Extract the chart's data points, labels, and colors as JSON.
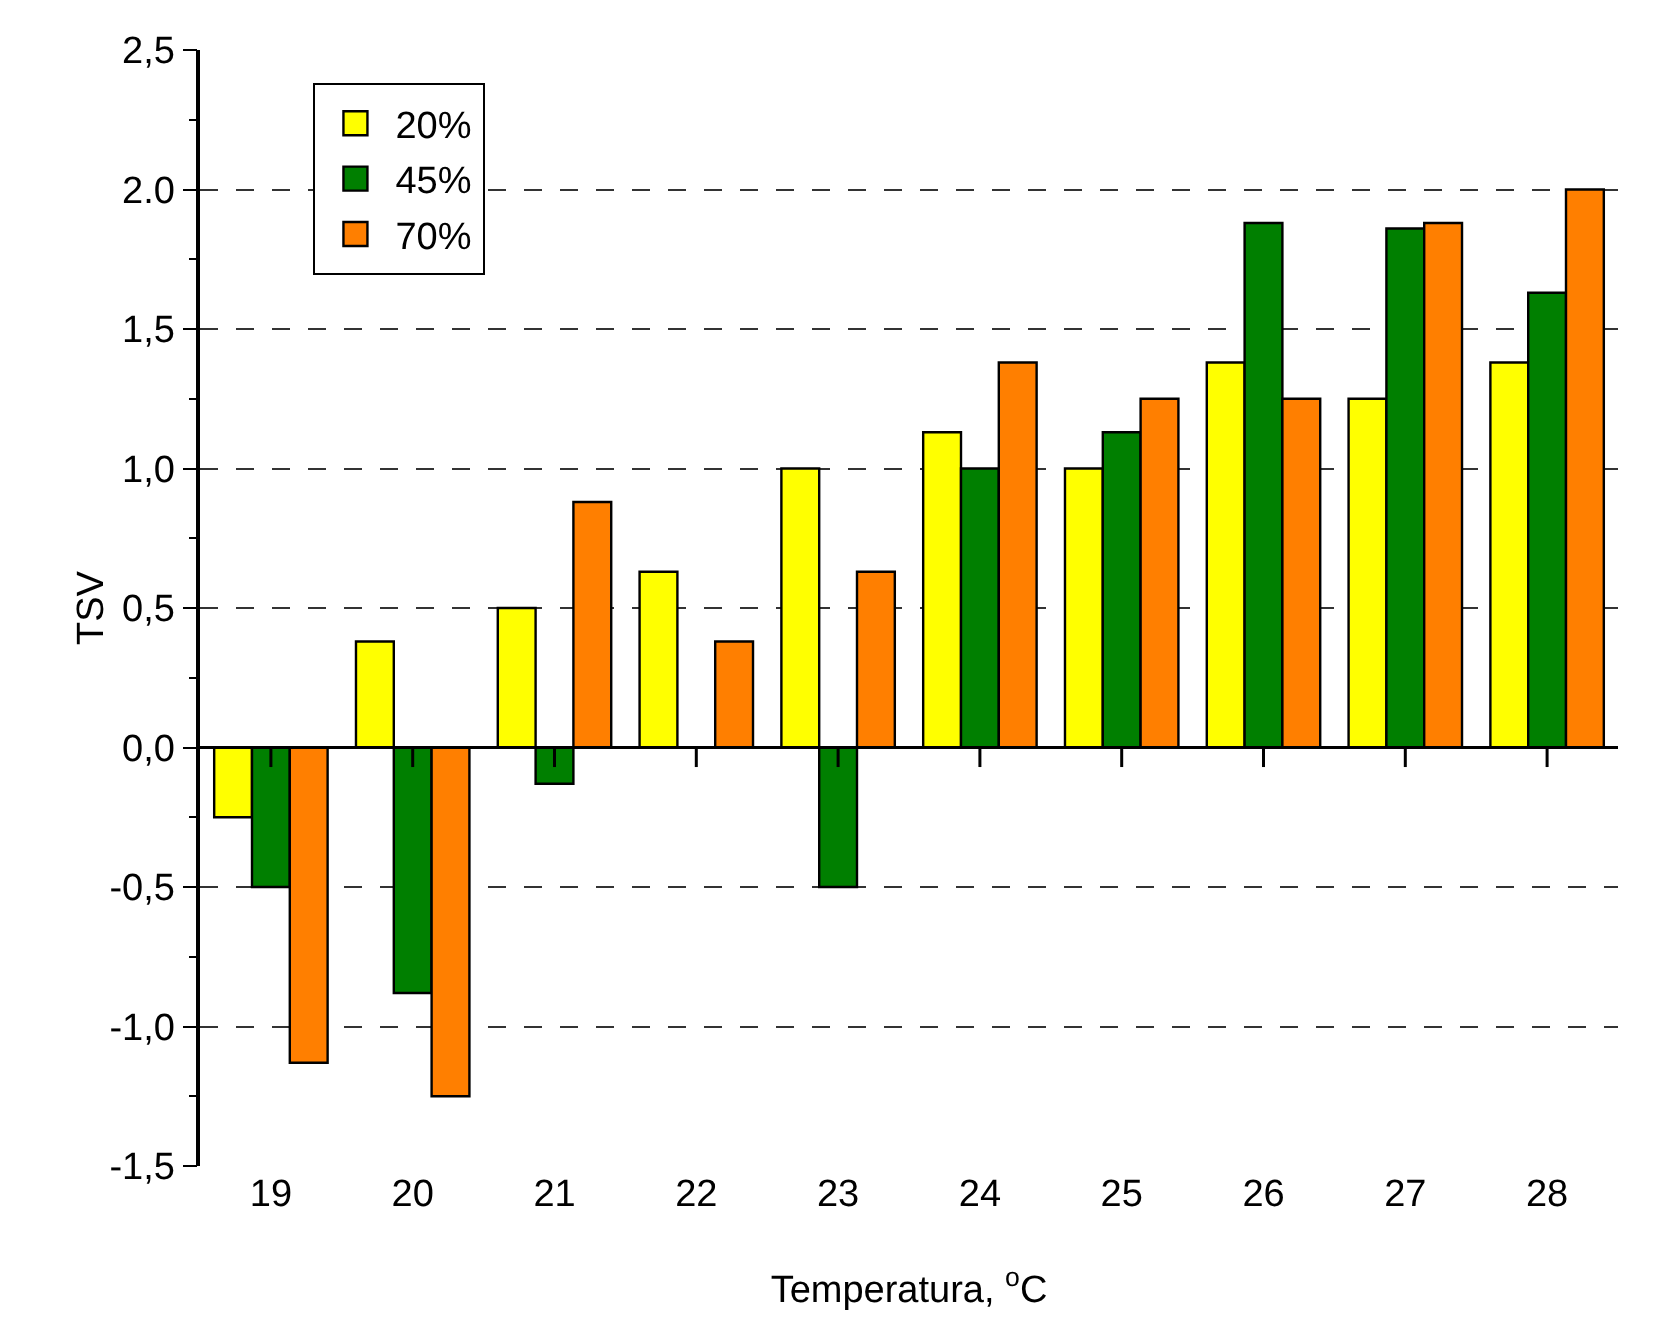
{
  "chart_data": {
    "type": "bar",
    "xlabel": "Temperatura, $^{o}$C",
    "ylabel": "TSV",
    "categories": [
      "19",
      "20",
      "21",
      "22",
      "23",
      "24",
      "25",
      "26",
      "27",
      "28"
    ],
    "series": [
      {
        "name": "20%",
        "color": "#ffff00",
        "values": [
          -0.25,
          0.38,
          0.5,
          0.63,
          1.0,
          1.13,
          1.0,
          1.38,
          1.25,
          1.38
        ]
      },
      {
        "name": "45%",
        "color": "#007f00",
        "values": [
          -0.5,
          -0.88,
          -0.13,
          null,
          -0.5,
          1.0,
          1.13,
          1.88,
          1.86,
          1.63
        ]
      },
      {
        "name": "70%",
        "color": "#ff7f00",
        "values": [
          -1.13,
          -1.25,
          0.88,
          0.38,
          0.63,
          1.38,
          1.25,
          1.25,
          1.88,
          2.0
        ]
      }
    ],
    "ylim": [
      -1.5,
      2.5
    ],
    "yticks": [
      {
        "value": -1.5,
        "label": "-1,5"
      },
      {
        "value": -1.0,
        "label": "-1,0"
      },
      {
        "value": -0.5,
        "label": "-0,5"
      },
      {
        "value": 0,
        "label": "0,0"
      },
      {
        "value": 0.5,
        "label": "0,5"
      },
      {
        "value": 1.0,
        "label": "1,0"
      },
      {
        "value": 1.5,
        "label": "1,5"
      },
      {
        "value": 2.0,
        "label": "2.0"
      },
      {
        "value": 2.5,
        "label": "2,5"
      }
    ],
    "grid": "y",
    "legend": "top left"
  }
}
